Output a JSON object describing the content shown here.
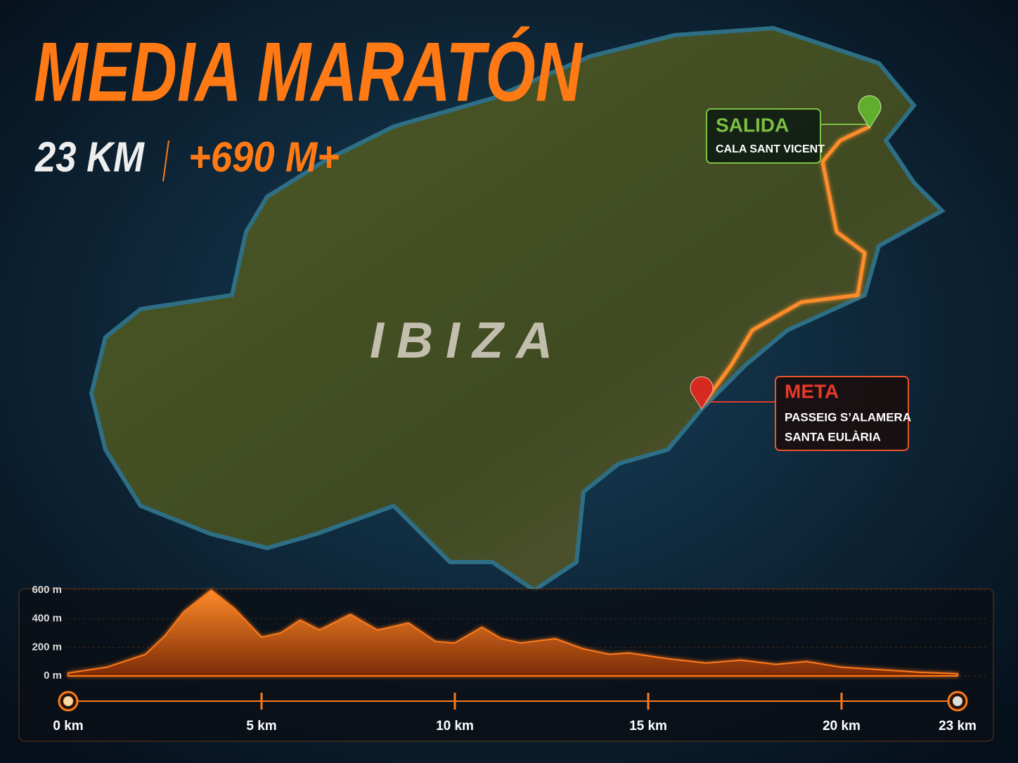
{
  "header": {
    "title": "MEDIA MARATÓN",
    "distance": "23 KM",
    "elevation_gain": "+690 M+"
  },
  "map": {
    "island": "IBIZA",
    "start": {
      "label": "SALIDA",
      "place": "CALA SANT VICENT"
    },
    "finish": {
      "label": "META",
      "place_lines": [
        "PASSEIG S’ALAMERA",
        "SANTA EULÀRIA"
      ]
    }
  },
  "chart_data": {
    "type": "area",
    "color": "#ff7a1a",
    "x": [
      0,
      1,
      2,
      2.5,
      3,
      3.7,
      4.3,
      5,
      5.5,
      6,
      6.5,
      7.3,
      8,
      8.8,
      9.5,
      10,
      10.7,
      11.2,
      11.7,
      12.6,
      13.3,
      14,
      14.5,
      15.5,
      16.5,
      17.4,
      18.3,
      19.1,
      20,
      21.2,
      22,
      23
    ],
    "values": [
      20,
      60,
      150,
      280,
      450,
      600,
      470,
      270,
      300,
      390,
      320,
      430,
      320,
      370,
      240,
      230,
      340,
      260,
      230,
      260,
      190,
      150,
      160,
      120,
      90,
      110,
      80,
      100,
      60,
      40,
      25,
      15
    ],
    "xlim": [
      0,
      23
    ],
    "ylim": [
      0,
      600
    ],
    "xticks": [
      {
        "value": 0,
        "label": "0 km"
      },
      {
        "value": 5,
        "label": "5 km"
      },
      {
        "value": 10,
        "label": "10 km"
      },
      {
        "value": 15,
        "label": "15 km"
      },
      {
        "value": 20,
        "label": "20 km"
      },
      {
        "value": 23,
        "label": "23 km"
      }
    ],
    "yticks": [
      {
        "value": 0,
        "label": "0 m"
      },
      {
        "value": 200,
        "label": "200 m"
      },
      {
        "value": 400,
        "label": "400 m"
      },
      {
        "value": 600,
        "label": "600 m"
      }
    ],
    "grid": true
  }
}
